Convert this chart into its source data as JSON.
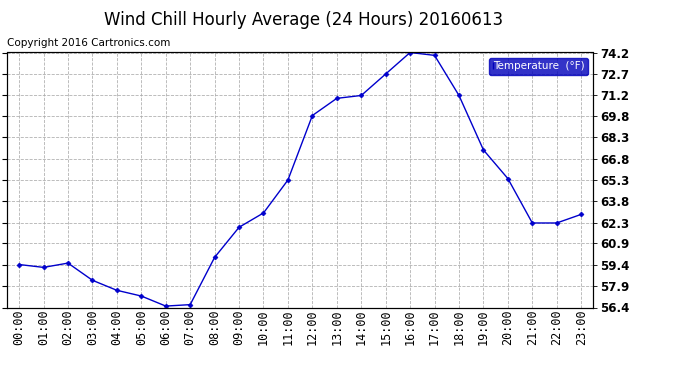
{
  "title": "Wind Chill Hourly Average (24 Hours) 20160613",
  "copyright": "Copyright 2016 Cartronics.com",
  "legend_label": "Temperature  (°F)",
  "x_labels": [
    "00:00",
    "01:00",
    "02:00",
    "03:00",
    "04:00",
    "05:00",
    "06:00",
    "07:00",
    "08:00",
    "09:00",
    "10:00",
    "11:00",
    "12:00",
    "13:00",
    "14:00",
    "15:00",
    "16:00",
    "17:00",
    "18:00",
    "19:00",
    "20:00",
    "21:00",
    "22:00",
    "23:00"
  ],
  "y_values": [
    59.4,
    59.2,
    59.5,
    58.3,
    57.6,
    57.2,
    56.5,
    56.6,
    59.9,
    62.0,
    63.0,
    65.3,
    69.8,
    71.0,
    71.2,
    72.7,
    74.2,
    74.0,
    71.2,
    67.4,
    65.4,
    62.3,
    62.3,
    62.9
  ],
  "ylim": [
    56.4,
    74.2
  ],
  "yticks": [
    56.4,
    57.9,
    59.4,
    60.9,
    62.3,
    63.8,
    65.3,
    66.8,
    68.3,
    69.8,
    71.2,
    72.7,
    74.2
  ],
  "line_color": "#0000cc",
  "marker_color": "#0000cc",
  "bg_color": "#ffffff",
  "plot_bg_color": "#ffffff",
  "grid_color": "#aaaaaa",
  "title_color": "#000000",
  "legend_bg": "#0000bb",
  "legend_text_color": "#ffffff",
  "copyright_color": "#000000",
  "title_fontsize": 12,
  "axis_fontsize": 8.5,
  "copyright_fontsize": 7.5
}
